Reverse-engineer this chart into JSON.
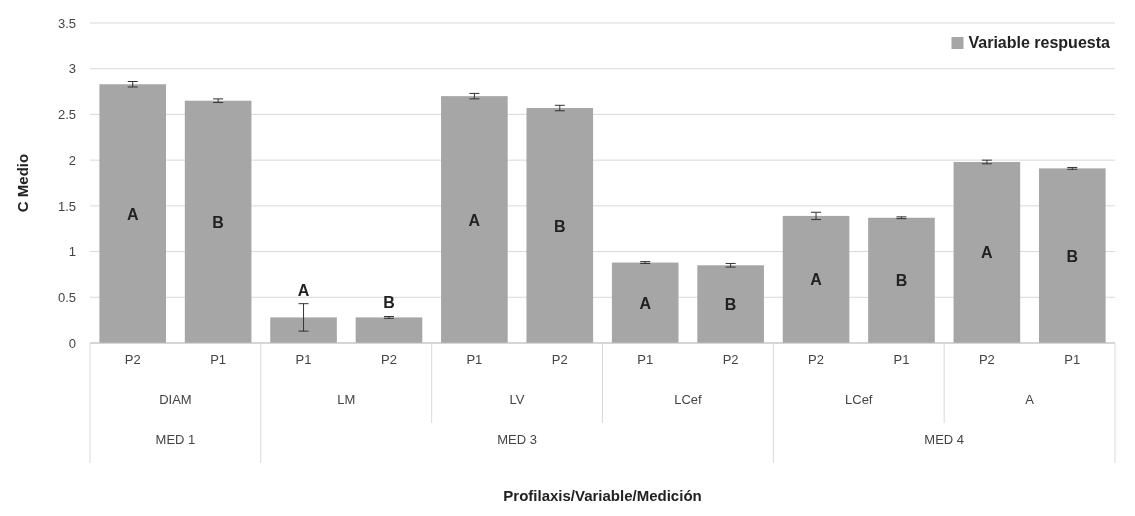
{
  "chart_data": {
    "type": "bar",
    "ylabel": "C Medio",
    "categories": [
      "P2",
      "P1",
      "P1",
      "P2",
      "P1",
      "P2",
      "P1",
      "P2",
      "P2",
      "P1",
      "P2",
      "P1"
    ],
    "series": [
      {
        "name": "Variable respuesta",
        "color": "#a6a6a6",
        "values": [
          2.83,
          2.65,
          0.28,
          0.28,
          2.7,
          2.57,
          0.88,
          0.85,
          1.39,
          1.37,
          1.98,
          1.91
        ],
        "errors": [
          0.03,
          0.02,
          0.15,
          0.01,
          0.03,
          0.03,
          0.01,
          0.02,
          0.04,
          0.01,
          0.02,
          0.01
        ],
        "value_labels": [
          "A",
          "B",
          "A",
          "B",
          "A",
          "B",
          "A",
          "B",
          "A",
          "B",
          "A",
          "B"
        ]
      }
    ],
    "annotations": [
      "DIAM",
      "LM",
      "LV",
      "LCef",
      "LCef",
      "A",
      "MED 1",
      "MED 3",
      "MED 4",
      "Profilaxis/Variable/Medición"
    ],
    "ylim": [
      0,
      3.5
    ],
    "yticks": [
      0,
      0.5,
      1,
      1.5,
      2,
      2.5,
      3,
      3.5
    ],
    "grid": "y",
    "legend": "top right"
  }
}
